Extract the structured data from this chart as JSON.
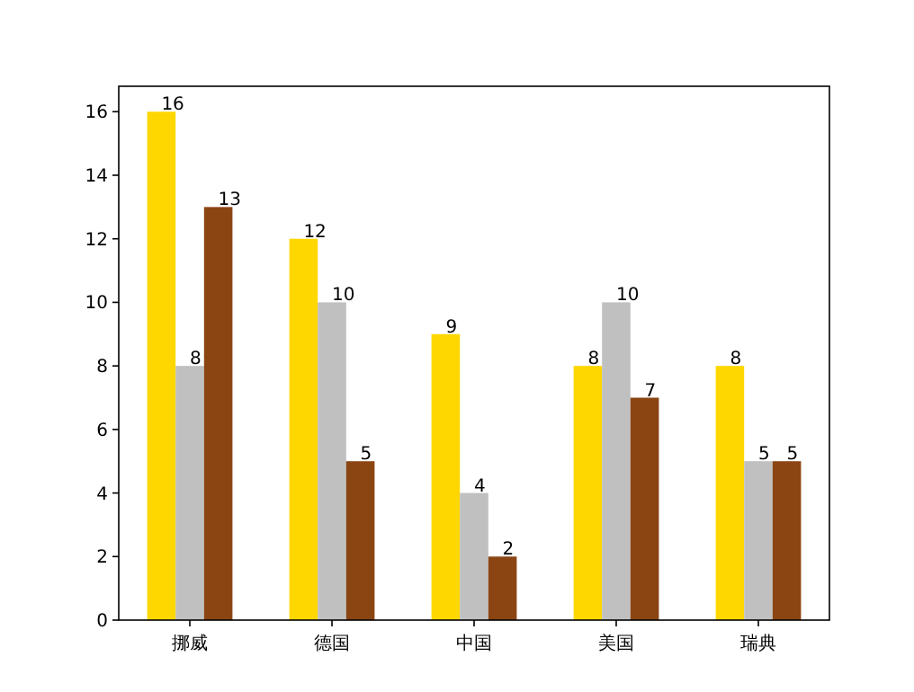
{
  "chart_data": {
    "type": "bar",
    "categories": [
      "挪威",
      "德国",
      "中国",
      "美国",
      "瑞典"
    ],
    "series": [
      {
        "color": "#ffd700",
        "values": [
          16,
          12,
          9,
          8,
          8
        ]
      },
      {
        "color": "#c0c0c0",
        "values": [
          8,
          10,
          4,
          10,
          5
        ]
      },
      {
        "color": "#8b4513",
        "values": [
          13,
          5,
          2,
          7,
          5
        ]
      }
    ],
    "ylim": [
      0,
      16.8
    ],
    "yticks": [
      0,
      2,
      4,
      6,
      8,
      10,
      12,
      14,
      16
    ],
    "data_labels": true,
    "grid": false
  }
}
